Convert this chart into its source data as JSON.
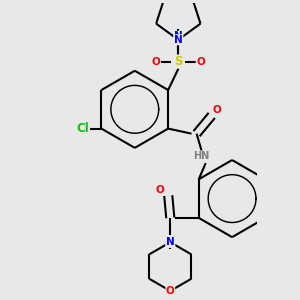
{
  "background_color": "#e8e8e8",
  "bond_color": "#000000",
  "bond_width": 1.5,
  "atom_colors": {
    "N": "#0000ff",
    "O": "#ff0000",
    "S": "#cccc00",
    "Cl": "#00cc00",
    "C": "#000000",
    "H": "#808080"
  },
  "font_size": 7.5
}
